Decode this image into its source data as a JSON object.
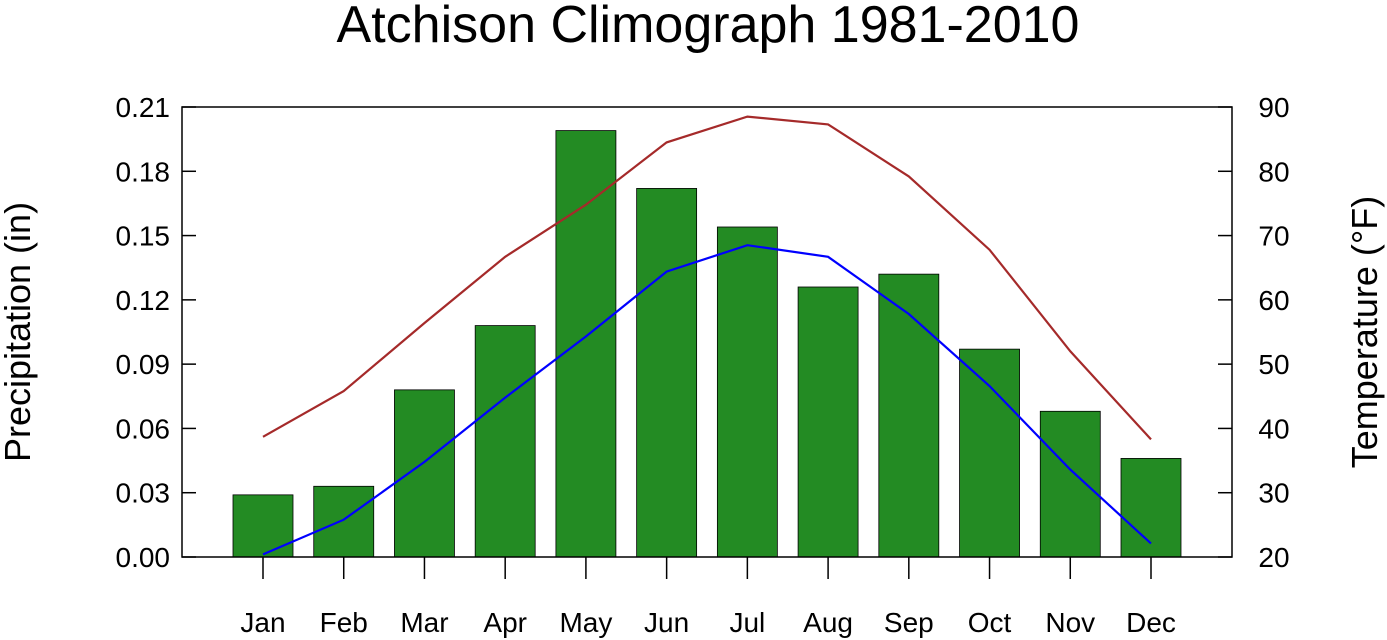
{
  "chart_data": {
    "type": "bar",
    "title": "Atchison Climograph 1981-2010",
    "ylabel_left": "Precipitation (in)",
    "ylabel_right": "Temperature (°F)",
    "categories": [
      "Jan",
      "Feb",
      "Mar",
      "Apr",
      "May",
      "Jun",
      "Jul",
      "Aug",
      "Sep",
      "Oct",
      "Nov",
      "Dec"
    ],
    "ylim_left": [
      0,
      0.21
    ],
    "yticks_left": [
      "0.00",
      "0.03",
      "0.06",
      "0.09",
      "0.12",
      "0.15",
      "0.18",
      "0.21"
    ],
    "ylim_right": [
      20,
      90
    ],
    "yticks_right": [
      "20",
      "30",
      "40",
      "50",
      "60",
      "70",
      "80",
      "90"
    ],
    "bar_series": {
      "axis": "left",
      "color": "#238b23",
      "values": [
        0.029,
        0.033,
        0.078,
        0.108,
        0.199,
        0.172,
        0.154,
        0.126,
        0.132,
        0.097,
        0.068,
        0.046
      ]
    },
    "line_series": [
      {
        "axis": "right",
        "color": "#a52a2a",
        "values": [
          38.7,
          45.8,
          56.4,
          66.7,
          74.8,
          84.5,
          88.5,
          87.3,
          79.2,
          67.8,
          52.0,
          38.3
        ]
      },
      {
        "axis": "right",
        "color": "#0000ff",
        "values": [
          20.4,
          25.8,
          34.8,
          44.8,
          54.3,
          64.4,
          68.5,
          66.7,
          57.8,
          46.6,
          33.6,
          22.1
        ]
      }
    ],
    "grid": false,
    "legend": "none"
  }
}
